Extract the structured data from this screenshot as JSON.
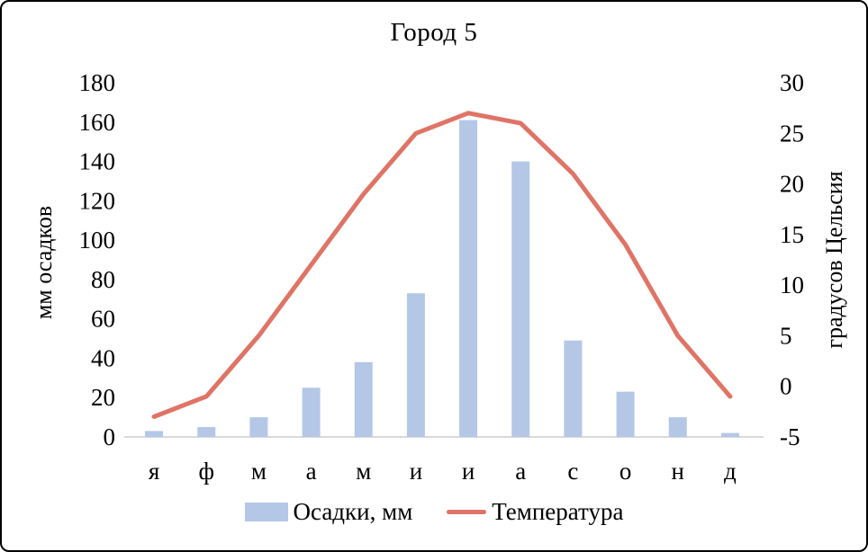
{
  "chart_data": {
    "type": "combo",
    "title": "Город 5",
    "categories": [
      "я",
      "ф",
      "м",
      "а",
      "м",
      "и",
      "и",
      "а",
      "с",
      "о",
      "н",
      "д"
    ],
    "series": [
      {
        "name": "Осадки, мм",
        "type": "bar",
        "axis": "left",
        "color": "#b4c7e7",
        "values": [
          3,
          5,
          10,
          25,
          38,
          73,
          161,
          140,
          49,
          23,
          10,
          2
        ]
      },
      {
        "name": "Температура",
        "type": "line",
        "axis": "right",
        "color": "#df7466",
        "values": [
          -3,
          -1,
          5,
          12,
          19,
          25,
          27,
          26,
          21,
          14,
          5,
          -1
        ]
      }
    ],
    "left_axis": {
      "label": "мм осадков",
      "min": 0,
      "max": 180,
      "ticks": [
        0,
        20,
        40,
        60,
        80,
        100,
        120,
        140,
        160,
        180
      ]
    },
    "right_axis": {
      "label": "градусов Цельсия",
      "min": -5,
      "max": 30,
      "ticks": [
        -5,
        0,
        5,
        10,
        15,
        20,
        25,
        30
      ]
    },
    "grid": false,
    "legend_position": "bottom"
  },
  "colors": {
    "bar": "#b4c7e7",
    "line": "#df7466",
    "axis_line": "#d9d9d9",
    "text": "#000000",
    "frame_border": "#000000",
    "background": "#ffffff"
  }
}
